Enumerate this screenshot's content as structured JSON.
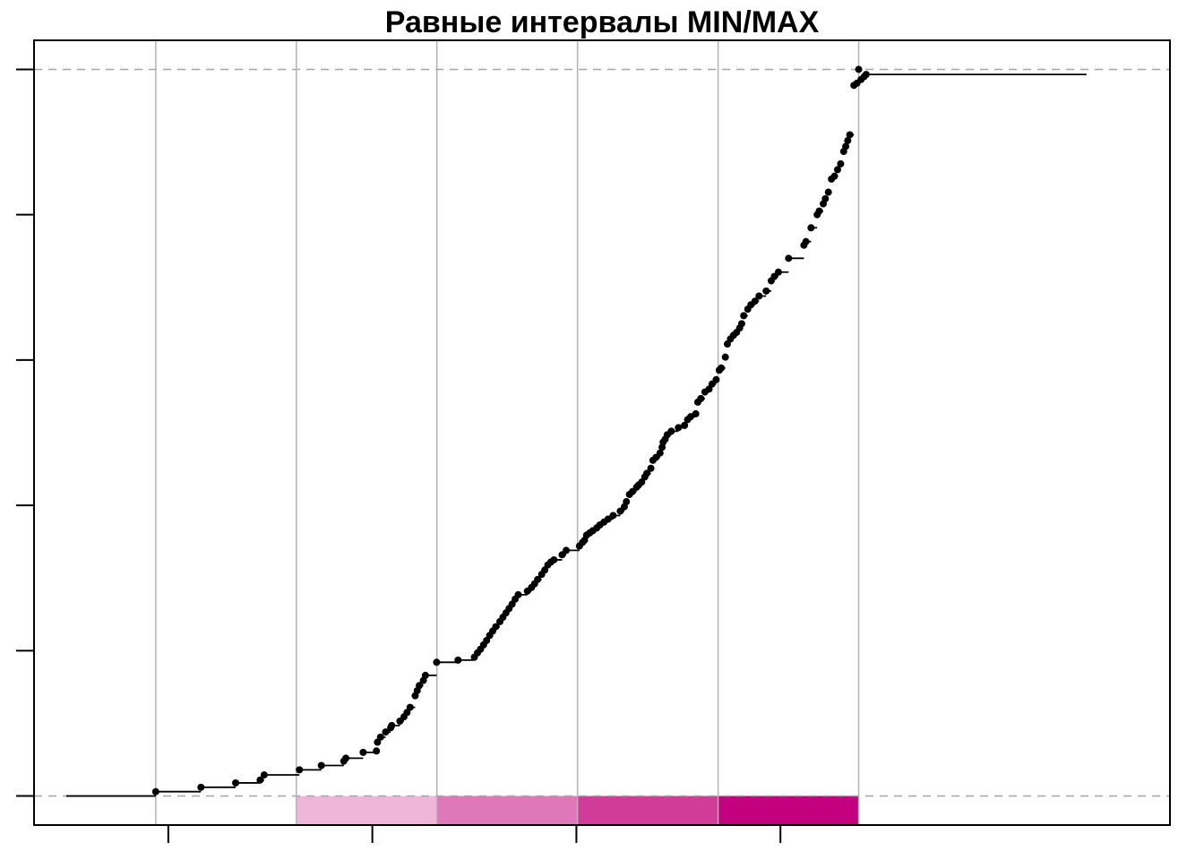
{
  "chart_data": {
    "type": "step",
    "title": "Равные интервалы MIN/MAX",
    "xlabel": "",
    "ylabel": "",
    "xlim": [
      0,
      1
    ],
    "ylim": [
      0,
      1
    ],
    "x_ticks": [
      0.1,
      0.3,
      0.5,
      0.7
    ],
    "y_ticks": [
      0,
      0.2,
      0.4,
      0.6,
      0.8,
      1
    ],
    "x_tick_labels": [],
    "y_tick_labels": [],
    "grid": false,
    "reference_lines_y": [
      0,
      1
    ],
    "class_breaks": [
      0.0877,
      0.2255,
      0.3633,
      0.5011,
      0.6389,
      0.7767
    ],
    "class_colors": [
      "#ffffff",
      "#f0b6da",
      "#de78b8",
      "#d03c97",
      "#c3007e"
    ],
    "colors": {
      "points": "#000000",
      "step_line": "#000000",
      "break_lines": "#b3b3b3",
      "reference_lines": "#a6a6a6"
    },
    "series": [
      {
        "points": [
          [
            0.0877,
            0.006
          ],
          [
            0.132,
            0.012
          ],
          [
            0.166,
            0.018
          ],
          [
            0.19,
            0.022
          ],
          [
            0.194,
            0.029
          ],
          [
            0.2285,
            0.036
          ],
          [
            0.25,
            0.042
          ],
          [
            0.272,
            0.048
          ],
          [
            0.274,
            0.052
          ],
          [
            0.291,
            0.06
          ],
          [
            0.304,
            0.062
          ],
          [
            0.305,
            0.074
          ],
          [
            0.308,
            0.081
          ],
          [
            0.313,
            0.088
          ],
          [
            0.318,
            0.094
          ],
          [
            0.319,
            0.097
          ],
          [
            0.327,
            0.103
          ],
          [
            0.331,
            0.109
          ],
          [
            0.334,
            0.115
          ],
          [
            0.337,
            0.122
          ],
          [
            0.342,
            0.138
          ],
          [
            0.344,
            0.145
          ],
          [
            0.346,
            0.152
          ],
          [
            0.35,
            0.159
          ],
          [
            0.352,
            0.166
          ],
          [
            0.363,
            0.184
          ],
          [
            0.384,
            0.187
          ],
          [
            0.4,
            0.191
          ],
          [
            0.403,
            0.197
          ],
          [
            0.406,
            0.202
          ],
          [
            0.409,
            0.208
          ],
          [
            0.412,
            0.214
          ],
          [
            0.415,
            0.221
          ],
          [
            0.418,
            0.227
          ],
          [
            0.421,
            0.233
          ],
          [
            0.425,
            0.24
          ],
          [
            0.428,
            0.246
          ],
          [
            0.431,
            0.252
          ],
          [
            0.434,
            0.258
          ],
          [
            0.437,
            0.264
          ],
          [
            0.44,
            0.271
          ],
          [
            0.443,
            0.277
          ],
          [
            0.452,
            0.282
          ],
          [
            0.456,
            0.287
          ],
          [
            0.459,
            0.292
          ],
          [
            0.462,
            0.298
          ],
          [
            0.466,
            0.305
          ],
          [
            0.469,
            0.311
          ],
          [
            0.472,
            0.318
          ],
          [
            0.475,
            0.322
          ],
          [
            0.478,
            0.325
          ],
          [
            0.486,
            0.332
          ],
          [
            0.49,
            0.338
          ],
          [
            0.503,
            0.344
          ],
          [
            0.506,
            0.349
          ],
          [
            0.508,
            0.352
          ],
          [
            0.51,
            0.359
          ],
          [
            0.513,
            0.362
          ],
          [
            0.516,
            0.365
          ],
          [
            0.52,
            0.369
          ],
          [
            0.523,
            0.373
          ],
          [
            0.527,
            0.377
          ],
          [
            0.531,
            0.381
          ],
          [
            0.536,
            0.386
          ],
          [
            0.543,
            0.392
          ],
          [
            0.547,
            0.398
          ],
          [
            0.549,
            0.405
          ],
          [
            0.552,
            0.415
          ],
          [
            0.555,
            0.419
          ],
          [
            0.559,
            0.425
          ],
          [
            0.561,
            0.428
          ],
          [
            0.564,
            0.432
          ],
          [
            0.567,
            0.439
          ],
          [
            0.569,
            0.444
          ],
          [
            0.573,
            0.451
          ],
          [
            0.575,
            0.462
          ],
          [
            0.578,
            0.466
          ],
          [
            0.582,
            0.472
          ],
          [
            0.584,
            0.48
          ],
          [
            0.585,
            0.487
          ],
          [
            0.587,
            0.491
          ],
          [
            0.589,
            0.497
          ],
          [
            0.593,
            0.502
          ],
          [
            0.6,
            0.507
          ],
          [
            0.606,
            0.51
          ],
          [
            0.609,
            0.518
          ],
          [
            0.612,
            0.522
          ],
          [
            0.617,
            0.526
          ],
          [
            0.619,
            0.542
          ],
          [
            0.622,
            0.547
          ],
          [
            0.626,
            0.556
          ],
          [
            0.63,
            0.56
          ],
          [
            0.633,
            0.567
          ],
          [
            0.637,
            0.573
          ],
          [
            0.64,
            0.586
          ],
          [
            0.642,
            0.589
          ],
          [
            0.646,
            0.604
          ],
          [
            0.648,
            0.622
          ],
          [
            0.651,
            0.629
          ],
          [
            0.654,
            0.634
          ],
          [
            0.657,
            0.638
          ],
          [
            0.66,
            0.644
          ],
          [
            0.662,
            0.65
          ],
          [
            0.664,
            0.661
          ],
          [
            0.668,
            0.67
          ],
          [
            0.671,
            0.676
          ],
          [
            0.675,
            0.681
          ],
          [
            0.679,
            0.688
          ],
          [
            0.686,
            0.695
          ],
          [
            0.691,
            0.709
          ],
          [
            0.694,
            0.715
          ],
          [
            0.698,
            0.721
          ],
          [
            0.708,
            0.74
          ],
          [
            0.723,
            0.758
          ],
          [
            0.725,
            0.763
          ],
          [
            0.73,
            0.782
          ],
          [
            0.736,
            0.8
          ],
          [
            0.738,
            0.805
          ],
          [
            0.742,
            0.815
          ],
          [
            0.744,
            0.822
          ],
          [
            0.747,
            0.831
          ],
          [
            0.75,
            0.849
          ],
          [
            0.753,
            0.853
          ],
          [
            0.756,
            0.862
          ],
          [
            0.759,
            0.87
          ],
          [
            0.762,
            0.887
          ],
          [
            0.764,
            0.894
          ],
          [
            0.766,
            0.902
          ],
          [
            0.768,
            0.91
          ],
          [
            0.772,
            0.978
          ],
          [
            0.775,
            0.981
          ],
          [
            0.779,
            0.986
          ],
          [
            0.782,
            0.99
          ],
          [
            0.784,
            0.993
          ],
          [
            0.7767,
            1.0
          ]
        ]
      }
    ]
  }
}
